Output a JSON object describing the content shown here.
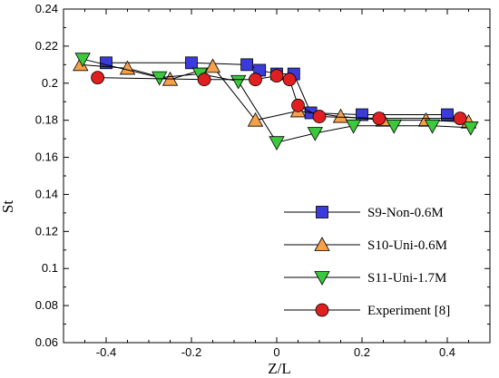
{
  "chart_data": {
    "type": "line",
    "title": "",
    "xlabel": "Z/L",
    "ylabel": "St",
    "xlim": [
      -0.5,
      0.5
    ],
    "ylim": [
      0.06,
      0.24
    ],
    "xticks": [
      -0.4,
      -0.2,
      0,
      0.2,
      0.4
    ],
    "xtick_labels": [
      "-0.4",
      "-0.2",
      "0",
      "0.2",
      "0.4"
    ],
    "yticks": [
      0.06,
      0.08,
      0.1,
      0.12,
      0.14,
      0.16,
      0.18,
      0.2,
      0.22,
      0.24
    ],
    "ytick_labels": [
      "0.06",
      "0.08",
      "0.1",
      "0.12",
      "0.14",
      "0.16",
      "0.18",
      "0.2",
      "0.22",
      "0.24"
    ],
    "legend_position": "lower-right",
    "grid": false,
    "series": [
      {
        "name": "S9-Non-0.6M",
        "marker": "square",
        "color": "#3b3bd9",
        "x": [
          -0.4,
          -0.2,
          -0.07,
          -0.04,
          0.0,
          0.04,
          0.08,
          0.2,
          0.4
        ],
        "y": [
          0.211,
          0.211,
          0.21,
          0.207,
          0.205,
          0.205,
          0.184,
          0.183,
          0.183
        ]
      },
      {
        "name": "S10-Uni-0.6M",
        "marker": "triangle-up",
        "color": "#f5a04a",
        "x": [
          -0.46,
          -0.35,
          -0.25,
          -0.15,
          -0.05,
          0.05,
          0.15,
          0.25,
          0.35,
          0.45
        ],
        "y": [
          0.21,
          0.208,
          0.202,
          0.209,
          0.18,
          0.185,
          0.182,
          0.18,
          0.18,
          0.179
        ]
      },
      {
        "name": "S11-Uni-1.7M",
        "marker": "triangle-down",
        "color": "#3cc83c",
        "x": [
          -0.455,
          -0.275,
          -0.18,
          -0.09,
          0.0,
          0.09,
          0.18,
          0.275,
          0.365,
          0.455
        ],
        "y": [
          0.213,
          0.203,
          0.205,
          0.201,
          0.168,
          0.173,
          0.177,
          0.177,
          0.177,
          0.176
        ]
      },
      {
        "name": "Experiment [8]",
        "marker": "circle",
        "color": "#e02020",
        "x": [
          -0.42,
          -0.17,
          -0.05,
          0.0,
          0.03,
          0.05,
          0.1,
          0.24,
          0.43
        ],
        "y": [
          0.203,
          0.202,
          0.202,
          0.204,
          0.202,
          0.188,
          0.182,
          0.181,
          0.181
        ]
      }
    ]
  }
}
